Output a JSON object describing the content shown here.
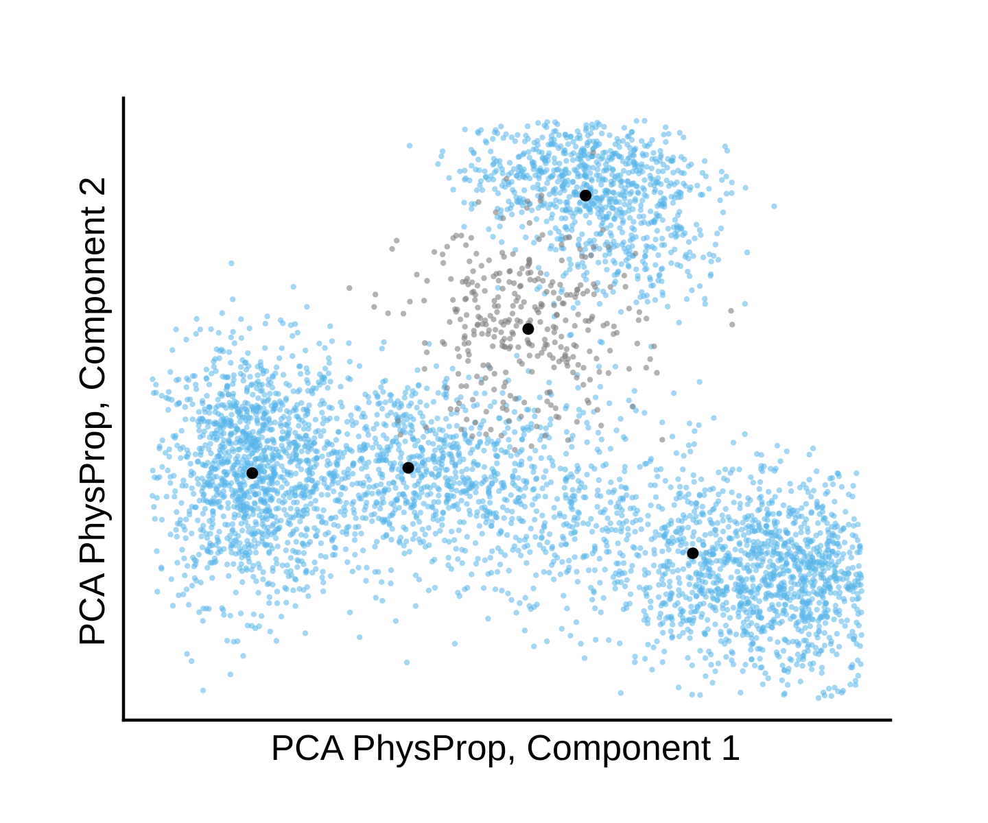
{
  "chart_data": {
    "type": "scatter",
    "title": "",
    "xlabel": "PCA PhysProp, Component 1",
    "ylabel": "PCA PhysProp,  Component 2",
    "xlim": [
      -3.8,
      3.4
    ],
    "ylim": [
      -2.6,
      3.2
    ],
    "grid": false,
    "legend": "none",
    "ticks": false,
    "colors": {
      "background": "#ffffff",
      "axis": "#000000",
      "main_points": "#56b4e9",
      "highlight_points": "#7f7f7f",
      "centroids": "#000000"
    },
    "series": [
      {
        "color": "#56b4e9",
        "opacity": 0.55,
        "clusters": [
          {
            "center": [
              -2.6,
              -0.3
            ],
            "spread": [
              0.45,
              0.6
            ],
            "count": 1300
          },
          {
            "center": [
              -1.1,
              -0.25
            ],
            "spread": [
              0.55,
              0.45
            ],
            "count": 700
          },
          {
            "center": [
              0.5,
              2.5
            ],
            "spread": [
              0.55,
              0.3
            ],
            "count": 700
          },
          {
            "center": [
              1.0,
              1.7
            ],
            "spread": [
              0.45,
              0.3
            ],
            "count": 220
          },
          {
            "center": [
              0.2,
              -0.6
            ],
            "spread": [
              0.6,
              0.55
            ],
            "count": 400
          },
          {
            "center": [
              2.6,
              -1.3
            ],
            "spread": [
              0.45,
              0.45
            ],
            "count": 900
          },
          {
            "center": [
              1.6,
              -1.15
            ],
            "spread": [
              0.45,
              0.5
            ],
            "count": 500
          }
        ]
      },
      {
        "color": "#7f7f7f",
        "opacity": 0.6,
        "clusters": [
          {
            "center": [
              -0.05,
              1.05
            ],
            "spread": [
              0.55,
              0.5
            ],
            "count": 330
          }
        ]
      }
    ],
    "centroids": [
      {
        "x": -2.6,
        "y": -0.3
      },
      {
        "x": -1.13,
        "y": -0.25
      },
      {
        "x": 0.54,
        "y": 2.3
      },
      {
        "x": 0.0,
        "y": 1.05
      },
      {
        "x": 1.55,
        "y": -1.05
      }
    ]
  }
}
